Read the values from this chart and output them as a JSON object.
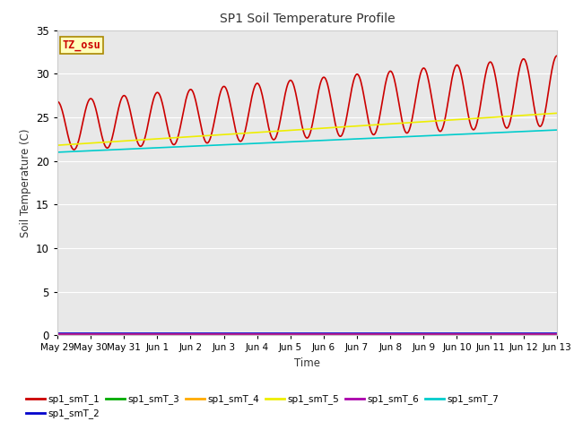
{
  "title": "SP1 Soil Temperature Profile",
  "xlabel": "Time",
  "ylabel": "Soil Temperature (C)",
  "ylim": [
    0,
    35
  ],
  "yticks": [
    0,
    5,
    10,
    15,
    20,
    25,
    30,
    35
  ],
  "plot_bg": "#e8e8e8",
  "fig_bg": "#ffffff",
  "grid_color": "#ffffff",
  "tz_label": "TZ_osu",
  "tz_bg": "#ffffbb",
  "tz_border": "#aa8800",
  "tz_text_color": "#cc0000",
  "series_colors": {
    "sp1_smT_1": "#cc0000",
    "sp1_smT_2": "#0000cc",
    "sp1_smT_3": "#00aa00",
    "sp1_smT_4": "#ffaa00",
    "sp1_smT_5": "#eeee00",
    "sp1_smT_6": "#aa00aa",
    "sp1_smT_7": "#00cccc"
  },
  "n_points": 720,
  "start_day": 0,
  "end_day": 15,
  "x_tick_labels": [
    "May 29",
    "May 30",
    "May 31",
    "Jun 1",
    "Jun 2",
    "Jun 3",
    "Jun 4",
    "Jun 5",
    "Jun 6",
    "Jun 7",
    "Jun 8",
    "Jun 9",
    "Jun 10",
    "Jun 11",
    "Jun 12",
    "Jun 13"
  ],
  "x_tick_positions": [
    0,
    1,
    2,
    3,
    4,
    5,
    6,
    7,
    8,
    9,
    10,
    11,
    12,
    13,
    14,
    15
  ]
}
